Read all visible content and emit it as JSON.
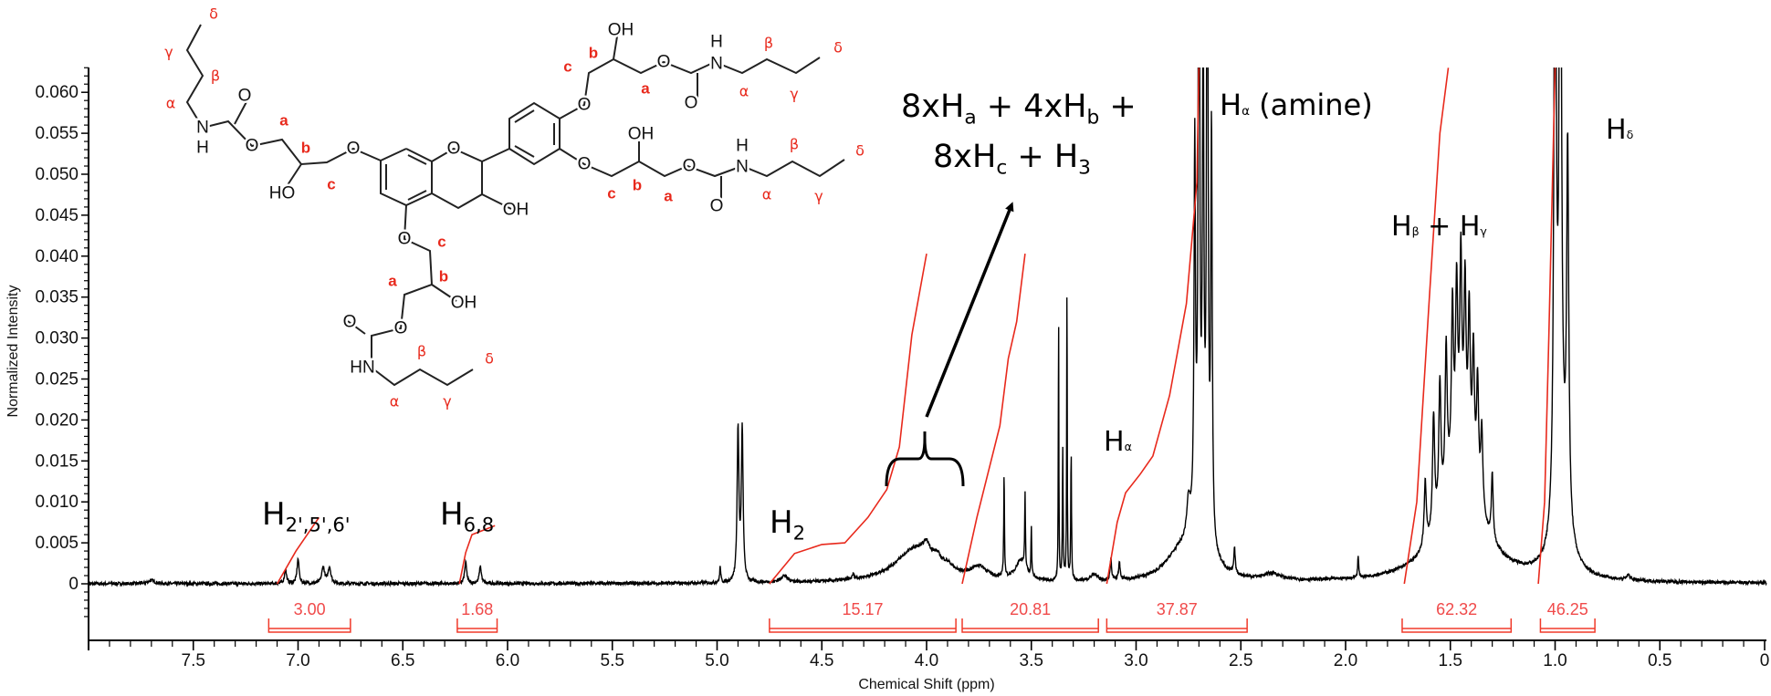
{
  "chart_data": {
    "type": "line",
    "xlabel": "Chemical Shift (ppm)",
    "ylabel": "Normalized Intensity",
    "xlim": [
      8.0,
      0
    ],
    "ylim": [
      0,
      0.063
    ],
    "x_reversed": true,
    "grid": false,
    "x_ticks": [
      "7.5",
      "7.0",
      "6.5",
      "6.0",
      "5.5",
      "5.0",
      "4.5",
      "4.0",
      "3.5",
      "3.0",
      "2.5",
      "2.0",
      "1.5",
      "1.0",
      "0.5",
      "0"
    ],
    "x_tick_values": [
      7.5,
      7.0,
      6.5,
      6.0,
      5.5,
      5.0,
      4.5,
      4.0,
      3.5,
      3.0,
      2.5,
      2.0,
      1.5,
      1.0,
      0.5,
      0
    ],
    "y_ticks": [
      "0",
      "0.005",
      "0.010",
      "0.015",
      "0.020",
      "0.025",
      "0.030",
      "0.035",
      "0.040",
      "0.045",
      "0.050",
      "0.055",
      "0.060"
    ],
    "y_tick_values": [
      0,
      0.005,
      0.01,
      0.015,
      0.02,
      0.025,
      0.03,
      0.035,
      0.04,
      0.045,
      0.05,
      0.055,
      0.06
    ],
    "spectrum_color": "#000000",
    "integral_color": "#e8291c",
    "spectrum_peaks_ppm_height_halfwidth": [
      [
        7.7,
        0.0004,
        0.02
      ],
      [
        7.06,
        0.0017,
        0.006
      ],
      [
        7.0,
        0.003,
        0.006
      ],
      [
        6.88,
        0.002,
        0.008
      ],
      [
        6.85,
        0.002,
        0.008
      ],
      [
        6.2,
        0.0026,
        0.006
      ],
      [
        6.13,
        0.0021,
        0.006
      ],
      [
        4.985,
        0.002,
        0.003
      ],
      [
        4.9,
        0.0185,
        0.005
      ],
      [
        4.88,
        0.0185,
        0.005
      ],
      [
        4.68,
        0.0008,
        0.02
      ],
      [
        4.35,
        0.0006,
        0.005
      ],
      [
        4.05,
        0.0042,
        0.12
      ],
      [
        4.0,
        0.0015,
        0.02
      ],
      [
        3.95,
        0.001,
        0.02
      ],
      [
        3.9,
        0.0008,
        0.03
      ],
      [
        3.75,
        0.0015,
        0.05
      ],
      [
        3.63,
        0.013,
        0.002
      ],
      [
        3.55,
        0.0025,
        0.03
      ],
      [
        3.53,
        0.009,
        0.002
      ],
      [
        3.5,
        0.006,
        0.002
      ],
      [
        3.37,
        0.034,
        0.0015
      ],
      [
        3.35,
        0.016,
        0.002
      ],
      [
        3.33,
        0.038,
        0.0015
      ],
      [
        3.31,
        0.016,
        0.002
      ],
      [
        3.2,
        0.0008,
        0.02
      ],
      [
        3.12,
        0.0025,
        0.004
      ],
      [
        3.08,
        0.0022,
        0.004
      ],
      [
        2.8,
        0.0025,
        0.08
      ],
      [
        2.75,
        0.004,
        0.01
      ],
      [
        2.72,
        0.045,
        0.004
      ],
      [
        2.7,
        0.09,
        0.004
      ],
      [
        2.68,
        0.06,
        0.004
      ],
      [
        2.66,
        0.09,
        0.004
      ],
      [
        2.64,
        0.05,
        0.004
      ],
      [
        2.7,
        0.006,
        0.06
      ],
      [
        2.53,
        0.003,
        0.004
      ],
      [
        2.35,
        0.0008,
        0.05
      ],
      [
        1.94,
        0.0025,
        0.003
      ],
      [
        1.45,
        0.014,
        0.11
      ],
      [
        1.62,
        0.008,
        0.006
      ],
      [
        1.58,
        0.014,
        0.006
      ],
      [
        1.55,
        0.016,
        0.006
      ],
      [
        1.52,
        0.018,
        0.006
      ],
      [
        1.49,
        0.02,
        0.006
      ],
      [
        1.47,
        0.021,
        0.006
      ],
      [
        1.45,
        0.024,
        0.006
      ],
      [
        1.43,
        0.021,
        0.006
      ],
      [
        1.41,
        0.019,
        0.006
      ],
      [
        1.39,
        0.016,
        0.006
      ],
      [
        1.37,
        0.014,
        0.006
      ],
      [
        1.35,
        0.01,
        0.006
      ],
      [
        1.3,
        0.008,
        0.005
      ],
      [
        1.0,
        0.09,
        0.006
      ],
      [
        0.975,
        0.09,
        0.006
      ],
      [
        0.94,
        0.045,
        0.006
      ],
      [
        0.97,
        0.01,
        0.04
      ],
      [
        0.65,
        0.0006,
        0.01
      ]
    ],
    "integral_curves": [
      [
        [
          7.1,
          0
        ],
        [
          7.01,
          0.004
        ],
        [
          6.9,
          0.0081
        ]
      ],
      [
        [
          6.23,
          0
        ],
        [
          6.2,
          0.0038
        ],
        [
          6.17,
          0.006
        ],
        [
          6.06,
          0.0071
        ]
      ],
      [
        [
          4.75,
          0
        ],
        [
          4.63,
          0.0037
        ],
        [
          4.5,
          0.0048
        ],
        [
          4.39,
          0.005
        ],
        [
          4.28,
          0.0081
        ],
        [
          4.19,
          0.0115
        ],
        [
          4.13,
          0.0167
        ],
        [
          4.07,
          0.0304
        ],
        [
          4.0,
          0.0403
        ]
      ],
      [
        [
          3.83,
          0
        ],
        [
          3.76,
          0.0081
        ],
        [
          3.65,
          0.0193
        ],
        [
          3.61,
          0.0275
        ],
        [
          3.57,
          0.032
        ],
        [
          3.53,
          0.0403
        ]
      ],
      [
        [
          3.14,
          0
        ],
        [
          3.09,
          0.0075
        ],
        [
          3.05,
          0.0111
        ],
        [
          2.98,
          0.0134
        ],
        [
          2.92,
          0.0156
        ],
        [
          2.84,
          0.023
        ],
        [
          2.76,
          0.0342
        ],
        [
          2.71,
          0.049
        ],
        [
          2.7,
          0.063
        ]
      ],
      [
        [
          1.72,
          0
        ],
        [
          1.66,
          0.01
        ],
        [
          1.6,
          0.035
        ],
        [
          1.55,
          0.055
        ],
        [
          1.51,
          0.063
        ]
      ],
      [
        [
          1.08,
          0
        ],
        [
          1.05,
          0.01
        ],
        [
          1.03,
          0.03
        ],
        [
          1.0,
          0.063
        ]
      ]
    ],
    "integrals": [
      {
        "label": "3.00",
        "from": 7.14,
        "to": 6.75
      },
      {
        "label": "1.68",
        "from": 6.24,
        "to": 6.05
      },
      {
        "label": "15.17",
        "from": 4.75,
        "to": 3.86
      },
      {
        "label": "20.81",
        "from": 3.83,
        "to": 3.18
      },
      {
        "label": "37.87",
        "from": 3.14,
        "to": 2.47
      },
      {
        "label": "62.32",
        "from": 1.73,
        "to": 1.21
      },
      {
        "label": "46.25",
        "from": 1.07,
        "to": 0.81
      }
    ],
    "annotations": [
      {
        "name": "label-h2-5-6",
        "segments": [
          {
            "t": "H"
          },
          {
            "t": "2',5',6'",
            "sub": true
          }
        ]
      },
      {
        "name": "label-h6-8",
        "segments": [
          {
            "t": "H"
          },
          {
            "t": "6,8",
            "sub": true
          }
        ]
      },
      {
        "name": "label-h2",
        "segments": [
          {
            "t": "H"
          },
          {
            "t": "2",
            "sub": true
          }
        ]
      },
      {
        "name": "label-multi-line1",
        "segments": [
          {
            "t": "8xH"
          },
          {
            "t": "a",
            "sub": true
          },
          {
            "t": " + 4xH"
          },
          {
            "t": "b",
            "sub": true
          },
          {
            "t": " +"
          }
        ]
      },
      {
        "name": "label-multi-line2",
        "segments": [
          {
            "t": "8xH"
          },
          {
            "t": "c",
            "sub": true
          },
          {
            "t": " + H"
          },
          {
            "t": "3",
            "sub": true
          }
        ]
      },
      {
        "name": "label-h-alpha-amine",
        "segments": [
          {
            "t": "H"
          },
          {
            "t": "α",
            "sub": true,
            "small": true
          },
          {
            "t": " (amine)"
          }
        ]
      },
      {
        "name": "label-h-delta",
        "segments": [
          {
            "t": "H"
          },
          {
            "t": "δ",
            "sub": true,
            "small": true
          }
        ]
      },
      {
        "name": "label-h-beta-gamma",
        "segments": [
          {
            "t": "H"
          },
          {
            "t": "β",
            "sub": true,
            "small": true
          },
          {
            "t": " + H"
          },
          {
            "t": "γ",
            "sub": true,
            "small": true
          }
        ]
      },
      {
        "name": "label-h-alpha",
        "segments": [
          {
            "t": "H"
          },
          {
            "t": "α",
            "sub": true,
            "small": true
          }
        ]
      }
    ]
  },
  "structure": {
    "atoms": [
      "N",
      "H",
      "O",
      "O",
      "HO",
      "O",
      "O",
      "OH",
      "O",
      "OH",
      "O",
      "O",
      "HN",
      "O",
      "OH",
      "O",
      "O",
      "N",
      "H",
      "O",
      "OH",
      "O",
      "O",
      "N",
      "H"
    ],
    "position_labels": [
      "δ",
      "γ",
      "β",
      "α",
      "a",
      "b",
      "c",
      "c",
      "b",
      "a",
      "β",
      "α",
      "γ",
      "δ",
      "c",
      "b",
      "a",
      "α",
      "β",
      "γ",
      "δ",
      "c",
      "b",
      "a",
      "α",
      "β",
      "γ",
      "δ"
    ]
  }
}
